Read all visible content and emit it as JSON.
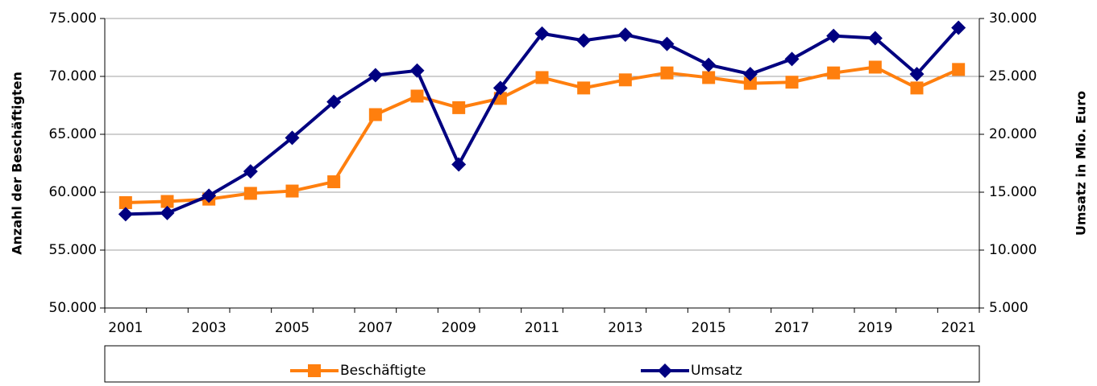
{
  "chart_data": {
    "type": "line",
    "categories": [
      "2001",
      null,
      "2003",
      null,
      "2005",
      null,
      "2007",
      null,
      "2009",
      null,
      "2011",
      null,
      "2013",
      null,
      "2015",
      null,
      "2017",
      null,
      "2019",
      null,
      "2021"
    ],
    "y_label": "Anzahl der Beschäftigten",
    "y2_label": "Umsatz in Mio. Euro",
    "ylim": [
      50000,
      75000
    ],
    "yticks": [
      {
        "value": 50000,
        "label": "50.000"
      },
      {
        "value": 55000,
        "label": "55.000"
      },
      {
        "value": 60000,
        "label": "60.000"
      },
      {
        "value": 65000,
        "label": "65.000"
      },
      {
        "value": 70000,
        "label": "70.000"
      },
      {
        "value": 75000,
        "label": "75.000"
      }
    ],
    "y2lim": [
      5000,
      30000
    ],
    "y2ticks": [
      {
        "value": 5000,
        "label": "5.000"
      },
      {
        "value": 10000,
        "label": "10.000"
      },
      {
        "value": 15000,
        "label": "15.000"
      },
      {
        "value": 20000,
        "label": "20.000"
      },
      {
        "value": 25000,
        "label": "25.000"
      },
      {
        "value": 30000,
        "label": "30.000"
      }
    ],
    "grid": true,
    "legend": "bottom",
    "series": [
      {
        "name": "Beschäftigte",
        "color": "#ff7f0e",
        "marker": "square",
        "values": [
          59100,
          59200,
          59400,
          59900,
          60100,
          60900,
          66700,
          68300,
          67300,
          68100,
          69900,
          69000,
          69700,
          70300,
          69900,
          69400,
          69500,
          70300,
          70800,
          69000,
          70600
        ]
      },
      {
        "name": "Umsatz",
        "color": "#000080",
        "marker": "diamond",
        "axis": "y2",
        "values": [
          13100,
          13200,
          14700,
          16800,
          19700,
          22800,
          25100,
          25500,
          17400,
          24000,
          28700,
          28100,
          28600,
          27800,
          26000,
          25200,
          26500,
          28500,
          28300,
          25200,
          29200
        ]
      }
    ]
  }
}
